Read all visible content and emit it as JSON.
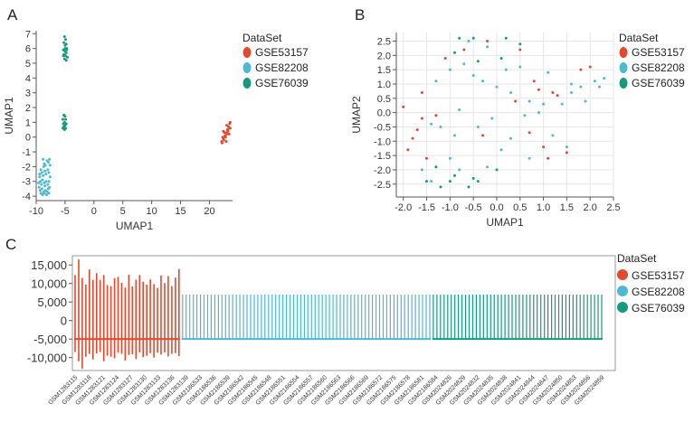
{
  "panel_labels": [
    "A",
    "B",
    "C"
  ],
  "legend": {
    "title": "DataSet",
    "items": [
      {
        "name": "GSE53157",
        "color": "#e4492e"
      },
      {
        "name": "GSE82208",
        "color": "#4cb8d4"
      },
      {
        "name": "GSE76039",
        "color": "#159a7c"
      }
    ]
  },
  "chart_data": [
    {
      "panel": "A",
      "type": "scatter",
      "xlabel": "UMAP1",
      "ylabel": "UMAP1",
      "xlim": [
        -10,
        24
      ],
      "ylim": [
        -4.3,
        7.2
      ],
      "xticks": [
        -10,
        -5,
        0,
        5,
        10,
        15,
        20
      ],
      "yticks": [
        -4,
        -3,
        -2,
        -1,
        0,
        1,
        2,
        3,
        4,
        5,
        6,
        7
      ],
      "grid": false,
      "legend_position": "right",
      "series": [
        {
          "name": "GSE53157",
          "points": [
            [
              22.1,
              -0.3
            ],
            [
              22.4,
              -0.1
            ],
            [
              22.7,
              0.1
            ],
            [
              22.9,
              0.3
            ],
            [
              23.1,
              0.5
            ],
            [
              23.3,
              0.7
            ],
            [
              23.5,
              0.9
            ],
            [
              23.6,
              1.0
            ],
            [
              22.2,
              -0.4
            ],
            [
              22.5,
              -0.2
            ],
            [
              22.8,
              0.0
            ],
            [
              23.0,
              0.2
            ],
            [
              23.2,
              0.4
            ],
            [
              23.4,
              0.6
            ],
            [
              22.3,
              0.0
            ],
            [
              22.6,
              0.3
            ],
            [
              23.0,
              0.8
            ],
            [
              23.4,
              0.2
            ],
            [
              22.9,
              -0.3
            ],
            [
              23.6,
              0.6
            ],
            [
              22.4,
              0.4
            ]
          ]
        },
        {
          "name": "GSE82208",
          "points": [
            [
              -8.8,
              -1.5
            ],
            [
              -8.6,
              -1.8
            ],
            [
              -8.4,
              -1.9
            ],
            [
              -8.1,
              -1.6
            ],
            [
              -7.9,
              -1.7
            ],
            [
              -7.7,
              -1.5
            ],
            [
              -7.6,
              -1.9
            ],
            [
              -9.2,
              -2.2
            ],
            [
              -9.0,
              -2.4
            ],
            [
              -8.8,
              -2.6
            ],
            [
              -8.5,
              -2.3
            ],
            [
              -8.3,
              -2.5
            ],
            [
              -8.0,
              -2.2
            ],
            [
              -7.8,
              -2.4
            ],
            [
              -9.4,
              -2.7
            ],
            [
              -9.3,
              -3.0
            ],
            [
              -9.1,
              -3.2
            ],
            [
              -8.9,
              -2.9
            ],
            [
              -8.6,
              -3.1
            ],
            [
              -8.3,
              -3.0
            ],
            [
              -8.0,
              -3.2
            ],
            [
              -7.8,
              -3.0
            ],
            [
              -9.5,
              -3.4
            ],
            [
              -9.3,
              -3.6
            ],
            [
              -9.0,
              -3.5
            ],
            [
              -8.7,
              -3.7
            ],
            [
              -8.4,
              -3.6
            ],
            [
              -8.1,
              -3.7
            ],
            [
              -7.9,
              -3.5
            ],
            [
              -9.2,
              -3.8
            ],
            [
              -8.9,
              -3.9
            ],
            [
              -8.6,
              -3.8
            ],
            [
              -8.2,
              -3.9
            ],
            [
              -7.8,
              -3.8
            ],
            [
              -9.6,
              -3.1
            ],
            [
              -7.6,
              -2.7
            ],
            [
              -8.7,
              -2.0
            ],
            [
              -9.4,
              -2.5
            ],
            [
              -7.7,
              -3.4
            ],
            [
              -8.5,
              -3.3
            ]
          ]
        },
        {
          "name": "GSE76039",
          "points": [
            [
              -5.1,
              6.8
            ],
            [
              -4.9,
              6.6
            ],
            [
              -5.2,
              6.4
            ],
            [
              -4.8,
              6.3
            ],
            [
              -5.0,
              6.2
            ],
            [
              -4.7,
              6.0
            ],
            [
              -5.3,
              5.9
            ],
            [
              -5.0,
              5.8
            ],
            [
              -4.8,
              5.7
            ],
            [
              -5.2,
              5.6
            ],
            [
              -4.9,
              5.5
            ],
            [
              -4.6,
              5.4
            ],
            [
              -5.1,
              5.3
            ],
            [
              -4.8,
              5.2
            ],
            [
              -5.0,
              6.0
            ],
            [
              -4.7,
              5.9
            ],
            [
              -5.3,
              5.5
            ],
            [
              -5.2,
              1.5
            ],
            [
              -5.0,
              1.4
            ],
            [
              -5.4,
              1.2
            ],
            [
              -4.9,
              1.2
            ],
            [
              -5.1,
              1.0
            ],
            [
              -5.3,
              0.9
            ],
            [
              -4.8,
              0.9
            ],
            [
              -5.0,
              0.8
            ],
            [
              -5.2,
              0.7
            ],
            [
              -4.9,
              0.6
            ],
            [
              -5.4,
              0.6
            ],
            [
              -5.1,
              0.5
            ]
          ]
        }
      ]
    },
    {
      "panel": "B",
      "type": "scatter",
      "xlabel": "UMAP1",
      "ylabel": "UMAP2",
      "xlim": [
        -2.15,
        2.5
      ],
      "ylim": [
        -2.95,
        2.8
      ],
      "xticks": [
        -2.0,
        -1.5,
        -1.0,
        -0.5,
        0.0,
        0.5,
        1.0,
        1.5,
        2.0,
        2.5
      ],
      "yticks": [
        -2.5,
        -2.0,
        -1.5,
        -1.0,
        -0.5,
        0.0,
        0.5,
        1.0,
        1.5,
        2.0,
        2.5
      ],
      "grid": true,
      "legend_position": "right",
      "series": [
        {
          "name": "GSE53157",
          "points": [
            [
              -0.2,
              2.5
            ],
            [
              -0.7,
              2.2
            ],
            [
              0.5,
              2.2
            ],
            [
              -1.1,
              1.9
            ],
            [
              -1.6,
              0.7
            ],
            [
              1.8,
              1.5
            ],
            [
              2.0,
              1.6
            ],
            [
              1.3,
              0.6
            ],
            [
              0.8,
              1.1
            ],
            [
              0.9,
              0.8
            ],
            [
              1.2,
              0.7
            ],
            [
              0.4,
              0.4
            ],
            [
              -2.0,
              0.2
            ],
            [
              -1.6,
              -0.2
            ],
            [
              -1.3,
              -0.1
            ],
            [
              -1.7,
              -0.6
            ],
            [
              -1.8,
              -0.9
            ],
            [
              -1.9,
              -1.3
            ],
            [
              -1.5,
              -1.6
            ],
            [
              -0.3,
              -0.8
            ],
            [
              1.0,
              -1.2
            ],
            [
              1.1,
              -1.6
            ],
            [
              1.5,
              -1.4
            ],
            [
              0.7,
              -0.7
            ]
          ]
        },
        {
          "name": "GSE82208",
          "points": [
            [
              -0.6,
              2.5
            ],
            [
              -0.2,
              2.3
            ],
            [
              -0.5,
              1.3
            ],
            [
              -0.3,
              1.1
            ],
            [
              -0.7,
              1.7
            ],
            [
              -1.0,
              1.5
            ],
            [
              -1.3,
              1.1
            ],
            [
              0.2,
              1.5
            ],
            [
              0.5,
              1.6
            ],
            [
              1.1,
              1.4
            ],
            [
              1.6,
              1.0
            ],
            [
              2.2,
              0.9
            ],
            [
              2.3,
              1.2
            ],
            [
              1.9,
              0.4
            ],
            [
              1.6,
              0.7
            ],
            [
              1.4,
              0.3
            ],
            [
              1.0,
              0.3
            ],
            [
              0.7,
              0.4
            ],
            [
              0.3,
              0.7
            ],
            [
              0.6,
              -0.1
            ],
            [
              -0.1,
              -0.2
            ],
            [
              -0.4,
              -0.5
            ],
            [
              -0.9,
              -0.8
            ],
            [
              -1.2,
              -0.5
            ],
            [
              -1.4,
              -0.4
            ],
            [
              -1.0,
              -1.6
            ],
            [
              -1.6,
              -2.0
            ],
            [
              -1.4,
              -2.4
            ],
            [
              -0.8,
              -2.0
            ],
            [
              0.1,
              -1.3
            ],
            [
              0.3,
              -0.9
            ],
            [
              0.7,
              -1.6
            ],
            [
              1.2,
              -0.8
            ],
            [
              1.5,
              -1.2
            ],
            [
              -0.2,
              -1.9
            ],
            [
              0.9,
              0.0
            ],
            [
              1.8,
              0.9
            ],
            [
              0.0,
              0.9
            ],
            [
              -0.8,
              0.1
            ],
            [
              2.1,
              1.1
            ]
          ]
        },
        {
          "name": "GSE76039",
          "points": [
            [
              -0.8,
              2.6
            ],
            [
              -0.5,
              2.6
            ],
            [
              0.2,
              2.6
            ],
            [
              0.5,
              2.4
            ],
            [
              -0.9,
              2.1
            ],
            [
              -0.4,
              1.8
            ],
            [
              0.1,
              1.9
            ],
            [
              -1.5,
              -2.4
            ],
            [
              -1.2,
              -2.6
            ],
            [
              -0.6,
              -2.6
            ],
            [
              -0.5,
              -2.3
            ],
            [
              -0.9,
              -2.2
            ],
            [
              -1.3,
              -1.9
            ],
            [
              -0.4,
              -2.4
            ],
            [
              0.0,
              -2.0
            ],
            [
              -1.0,
              -2.4
            ]
          ]
        }
      ]
    },
    {
      "panel": "C",
      "type": "bar",
      "subtype": "boxplot-per-sample",
      "xlabel": "",
      "ylabel": "",
      "ylim": [
        -13500,
        17500
      ],
      "yticks": [
        15000,
        10000,
        5000,
        0,
        -5000,
        -10000
      ],
      "ytick_labels": [
        "15,000",
        "10,000",
        "5,000",
        "0",
        "-5,000",
        "-10,000"
      ],
      "grid": false,
      "legend_position": "right",
      "median": -5000,
      "groups": [
        {
          "name": "GSE53157",
          "highs": [
            12300,
            16500,
            11500,
            9700,
            13800,
            11000,
            12800,
            11000,
            12300,
            9600,
            9300,
            11500,
            11800,
            10200,
            8900,
            12400,
            9200,
            11000,
            12300,
            10500,
            9700,
            11100,
            9800,
            8800,
            12200,
            10100,
            12000,
            9300,
            11600,
            13900
          ],
          "lows": [
            -8500,
            -11000,
            -13000,
            -9800,
            -9000,
            -10500,
            -8900,
            -8500,
            -11000,
            -9500,
            -9800,
            -10200,
            -8700,
            -9000,
            -10800,
            -9300,
            -9100,
            -10400,
            -8600,
            -9900,
            -9500,
            -8800,
            -10000,
            -8700,
            -9200,
            -8600,
            -9700,
            -9000,
            -8800,
            -9600
          ]
        },
        {
          "name": "GSE82208",
          "count": 70,
          "high": 7000,
          "low": -5000
        },
        {
          "name": "GSE76039",
          "count": 48,
          "high": 7000,
          "low": -5000
        }
      ],
      "tick_labels": [
        "GSM1283115",
        "GSM1283118",
        "GSM1283121",
        "GSM1283124",
        "GSM1283127",
        "GSM1283130",
        "GSM1283133",
        "GSM1283136",
        "GSM1283139",
        "GSM2186533",
        "GSM2186536",
        "GSM2186539",
        "GSM2186542",
        "GSM2186545",
        "GSM2186548",
        "GSM2186551",
        "GSM2186554",
        "GSM2186557",
        "GSM2186560",
        "GSM2186563",
        "GSM2186566",
        "GSM2186569",
        "GSM2186572",
        "GSM2186575",
        "GSM2186578",
        "GSM2186581",
        "GSM2186584",
        "GSM2024826",
        "GSM2024829",
        "GSM2024832",
        "GSM2024835",
        "GSM2024838",
        "GSM2024841",
        "GSM2024844",
        "GSM2024847",
        "GSM2024850",
        "GSM2024853",
        "GSM2024856",
        "GSM2024859"
      ]
    }
  ]
}
